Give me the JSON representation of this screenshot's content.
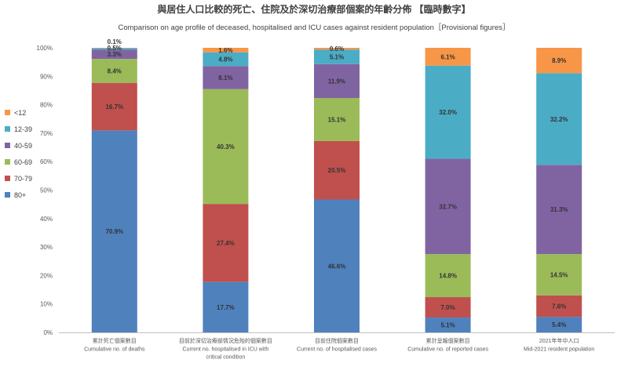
{
  "chart_data": {
    "type": "bar",
    "stacked": "percent",
    "title": "與居住人口比較的死亡、住院及於深切治療部個案的年齡分佈 【臨時數字】",
    "subtitle": "Comparison on age profile of deceased, hospitalised and ICU cases against resident population［Provisional figures］",
    "categories": [
      {
        "zh": "累計死亡個案數目",
        "en": [
          "Cumulative no. of deaths"
        ]
      },
      {
        "zh": "目前於深切治療部情況危殆的個案數目",
        "en": [
          "Current no. hospitalised in ICU with",
          "critical condition"
        ]
      },
      {
        "zh": "目前住院個案數目",
        "en": [
          "Current no. of hospitalised cases"
        ]
      },
      {
        "zh": "累計呈報個案數目",
        "en": [
          "Cumulative no. of reported cases"
        ]
      },
      {
        "zh": "2021年年中人口",
        "en": [
          "Mid-2021 resident population"
        ]
      }
    ],
    "series": [
      {
        "name": "<12",
        "color": "#F79646",
        "values": [
          0.1,
          1.6,
          0.6,
          6.1,
          8.9
        ],
        "labels": [
          "0.1%",
          "1.6%",
          "0.6%",
          "6.1%",
          "8.9%"
        ]
      },
      {
        "name": "12-39",
        "color": "#4BACC6",
        "values": [
          0.5,
          4.8,
          5.1,
          32.0,
          32.2
        ],
        "labels": [
          "0.5%",
          "4.8%",
          "5.1%",
          "32.0%",
          "32.2%"
        ]
      },
      {
        "name": "40-59",
        "color": "#8064A2",
        "values": [
          3.3,
          8.1,
          11.9,
          32.7,
          31.3
        ],
        "labels": [
          "3.3%",
          "8.1%",
          "11.9%",
          "32.7%",
          "31.3%"
        ]
      },
      {
        "name": "60-69",
        "color": "#9BBB59",
        "values": [
          8.4,
          40.3,
          15.1,
          14.8,
          14.5
        ],
        "labels": [
          "8.4%",
          "40.3%",
          "15.1%",
          "14.8%",
          "14.5%"
        ]
      },
      {
        "name": "70-79",
        "color": "#C0504D",
        "values": [
          16.7,
          27.4,
          20.5,
          7.0,
          7.6
        ],
        "labels": [
          "16.7%",
          "27.4%",
          "20.5%",
          "7.0%",
          "7.6%"
        ]
      },
      {
        "name": "80+",
        "color": "#4F81BD",
        "values": [
          70.9,
          17.7,
          46.6,
          5.1,
          5.4
        ],
        "labels": [
          "70.9%",
          "17.7%",
          "46.6%",
          "5.1%",
          "5.4%"
        ]
      }
    ],
    "ylim": [
      0,
      100
    ],
    "y_ticks": [
      {
        "value": 0,
        "label": "0%"
      },
      {
        "value": 10,
        "label": "10%"
      },
      {
        "value": 20,
        "label": "20%"
      },
      {
        "value": 30,
        "label": "30%"
      },
      {
        "value": 40,
        "label": "40%"
      },
      {
        "value": 50,
        "label": "50%"
      },
      {
        "value": 60,
        "label": "60%"
      },
      {
        "value": 70,
        "label": "70%"
      },
      {
        "value": 80,
        "label": "80%"
      },
      {
        "value": 90,
        "label": "90%"
      },
      {
        "value": 100,
        "label": "100%"
      }
    ],
    "legend": "left",
    "grid": false
  }
}
